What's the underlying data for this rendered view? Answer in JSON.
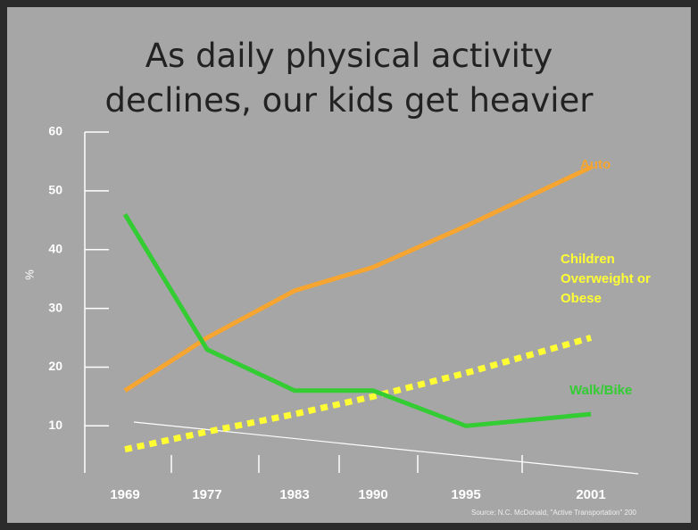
{
  "chart_data": {
    "type": "line",
    "title": "As daily physical activity declines, our kids get heavier",
    "ylabel": "%",
    "categories": [
      "1969",
      "1977",
      "1983",
      "1990",
      "1995",
      "2001"
    ],
    "series": [
      {
        "name": "Auto",
        "color": "#f5a530",
        "values": [
          16,
          25,
          33,
          37,
          44,
          54
        ]
      },
      {
        "name": "Children Overweight or Obese",
        "color": "#ffff33",
        "dashed": true,
        "values": [
          6,
          9,
          12,
          15,
          19,
          25
        ]
      },
      {
        "name": "Walk/Bike",
        "color": "#33cc33",
        "values": [
          46,
          23,
          16,
          16,
          10,
          12
        ]
      }
    ],
    "ylim": [
      2,
      60
    ],
    "yticks": [
      10,
      20,
      30,
      40,
      50,
      60
    ],
    "source": "Source: N.C. McDonald, \"Active Transportation\" 200"
  }
}
